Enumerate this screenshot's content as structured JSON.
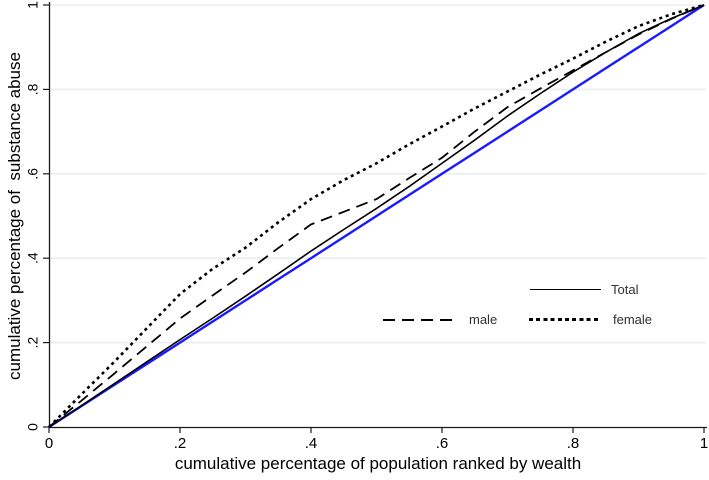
{
  "chart_data": {
    "type": "line",
    "title": "",
    "xlabel": "cumulative percentage of population ranked by wealth",
    "ylabel": "cumulative percentage of  substance abuse",
    "xlim": [
      0,
      1
    ],
    "ylim": [
      0,
      1
    ],
    "xtick_labels": [
      "0",
      ".2",
      ".4",
      ".6",
      ".8",
      "1"
    ],
    "ytick_labels": [
      "0",
      ".2",
      ".4",
      ".6",
      ".8",
      "1"
    ],
    "tick_values": [
      0,
      0.2,
      0.4,
      0.6,
      0.8,
      1
    ],
    "grid": "horizontal-only",
    "gridline_color": "#e8eef0",
    "axis_color": "#1a1a1a",
    "x": [
      0,
      0.05,
      0.1,
      0.15,
      0.2,
      0.25,
      0.3,
      0.35,
      0.4,
      0.45,
      0.5,
      0.55,
      0.6,
      0.65,
      0.7,
      0.75,
      0.8,
      0.85,
      0.9,
      0.95,
      1
    ],
    "series": [
      {
        "name": "diagonal",
        "color": "#1a1aff",
        "style": "solid",
        "width": 2.4,
        "values": [
          0,
          0.05,
          0.1,
          0.15,
          0.2,
          0.25,
          0.3,
          0.35,
          0.4,
          0.45,
          0.5,
          0.55,
          0.6,
          0.65,
          0.7,
          0.75,
          0.8,
          0.85,
          0.9,
          0.95,
          1
        ]
      },
      {
        "name": "Total",
        "color": "#000000",
        "style": "solid",
        "width": 1.6,
        "values": [
          0,
          0.051,
          0.103,
          0.155,
          0.207,
          0.258,
          0.31,
          0.363,
          0.417,
          0.468,
          0.518,
          0.57,
          0.625,
          0.68,
          0.737,
          0.79,
          0.841,
          0.888,
          0.932,
          0.968,
          1
        ]
      },
      {
        "name": "male",
        "color": "#000000",
        "style": "dashed",
        "width": 1.8,
        "values": [
          0,
          0.063,
          0.127,
          0.192,
          0.257,
          0.312,
          0.366,
          0.424,
          0.48,
          0.51,
          0.54,
          0.59,
          0.638,
          0.7,
          0.758,
          0.802,
          0.845,
          0.888,
          0.93,
          0.967,
          1
        ]
      },
      {
        "name": "female",
        "color": "#000000",
        "style": "dotted",
        "width": 2.6,
        "values": [
          0,
          0.078,
          0.155,
          0.235,
          0.315,
          0.375,
          0.425,
          0.485,
          0.54,
          0.585,
          0.625,
          0.67,
          0.712,
          0.755,
          0.795,
          0.835,
          0.873,
          0.913,
          0.95,
          0.978,
          1
        ]
      }
    ],
    "legend": {
      "position": "inside-lower-right",
      "entries": [
        {
          "label": "Total",
          "style": "solid"
        },
        {
          "label": "male",
          "style": "dashed"
        },
        {
          "label": "female",
          "style": "dotted"
        }
      ]
    }
  }
}
